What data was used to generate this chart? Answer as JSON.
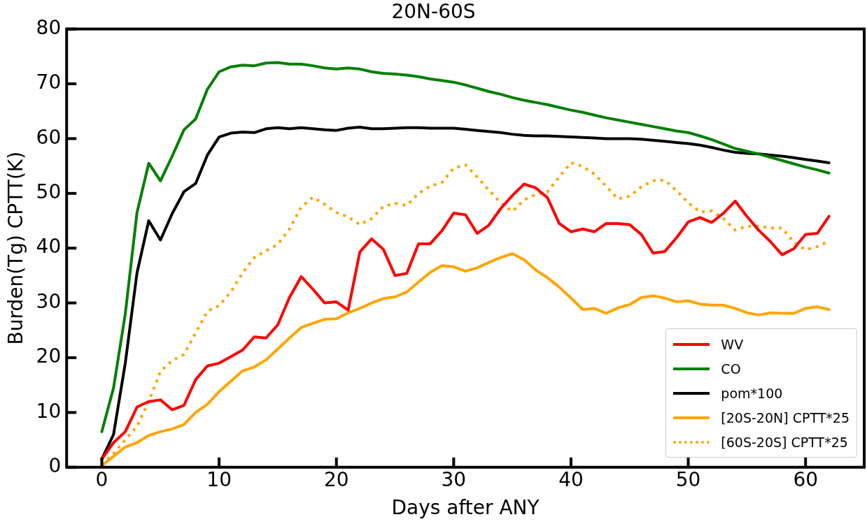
{
  "chart_data": {
    "type": "line",
    "title": "20N-60S",
    "xlabel": "Days after ANY",
    "ylabel": "Burden(Tg) CPTT(K)",
    "x": [
      0,
      1,
      2,
      3,
      4,
      5,
      6,
      7,
      8,
      9,
      10,
      11,
      12,
      13,
      14,
      15,
      16,
      17,
      18,
      19,
      20,
      21,
      22,
      23,
      24,
      25,
      26,
      27,
      28,
      29,
      30,
      31,
      32,
      33,
      34,
      35,
      36,
      37,
      38,
      39,
      40,
      41,
      42,
      43,
      44,
      45,
      46,
      47,
      48,
      49,
      50,
      51,
      52,
      53,
      54,
      55,
      56,
      57,
      58,
      59,
      60,
      61,
      62
    ],
    "xlim": [
      -3,
      65
    ],
    "ylim": [
      0,
      80
    ],
    "xticks": [
      0,
      10,
      20,
      30,
      40,
      50,
      60
    ],
    "yticks": [
      0,
      10,
      20,
      30,
      40,
      50,
      60,
      70,
      80
    ],
    "legend": "bottom right",
    "series": [
      {
        "name": "WV",
        "color": "#ff0000",
        "values": [
          1.5,
          4.5,
          6.5,
          11,
          12,
          12.3,
          10.5,
          11.3,
          16,
          18.5,
          19,
          20.2,
          21.4,
          23.8,
          23.6,
          26,
          31,
          34.8,
          32.5,
          30,
          30.2,
          28.7,
          39.3,
          41.7,
          39.8,
          35,
          35.4,
          40.8,
          40.8,
          43.2,
          46.4,
          46.1,
          42.7,
          44.2,
          47.2,
          49.6,
          51.7,
          51,
          49.2,
          44.5,
          43,
          43.5,
          43,
          44.5,
          44.5,
          44.3,
          42.5,
          39.1,
          39.4,
          41.9,
          44.8,
          45.6,
          44.7,
          46.4,
          48.6,
          45.8,
          43.3,
          41.2,
          38.8,
          39.9,
          42.5,
          42.7,
          45.8
        ]
      },
      {
        "name": "CO",
        "color": "#008000",
        "values": [
          6.5,
          14.5,
          28,
          46.5,
          55.5,
          52.3,
          56.8,
          61.6,
          63.6,
          69,
          72.2,
          73.1,
          73.4,
          73.3,
          73.8,
          73.9,
          73.6,
          73.6,
          73.3,
          72.9,
          72.7,
          72.9,
          72.7,
          72.2,
          71.9,
          71.8,
          71.6,
          71.3,
          70.9,
          70.6,
          70.3,
          69.8,
          69.2,
          68.6,
          68.1,
          67.5,
          67,
          66.6,
          66.2,
          65.7,
          65.2,
          64.8,
          64.3,
          63.8,
          63.4,
          63,
          62.6,
          62.2,
          61.8,
          61.4,
          61.1,
          60.5,
          59.8,
          59,
          58.2,
          57.7,
          57.2,
          56.6,
          56,
          55.4,
          54.8,
          54.3,
          53.7
        ]
      },
      {
        "name": "pom*100",
        "color": "#000000",
        "values": [
          1.5,
          6,
          19,
          35.5,
          45,
          41.5,
          46.3,
          50.3,
          51.8,
          57,
          60.3,
          61,
          61.2,
          61.1,
          61.8,
          62,
          61.8,
          62,
          61.8,
          61.6,
          61.5,
          61.9,
          62.1,
          61.8,
          61.8,
          61.9,
          62,
          62,
          61.9,
          61.9,
          61.9,
          61.7,
          61.5,
          61.3,
          61.1,
          60.8,
          60.6,
          60.5,
          60.5,
          60.4,
          60.3,
          60.2,
          60.1,
          60,
          60,
          60,
          59.9,
          59.7,
          59.5,
          59.3,
          59.1,
          58.8,
          58.4,
          57.9,
          57.5,
          57.3,
          57.2,
          57,
          56.8,
          56.5,
          56.2,
          55.9,
          55.6
        ]
      },
      {
        "name": "[20S-20N] CPTT*25",
        "color": "#ffa500",
        "values": [
          0.3,
          2,
          3.7,
          4.5,
          5.8,
          6.5,
          7,
          7.8,
          10,
          11.5,
          13.8,
          15.7,
          17.6,
          18.3,
          19.6,
          21.6,
          23.6,
          25.5,
          26.3,
          27,
          27.1,
          28.2,
          29,
          30,
          30.8,
          31.1,
          32,
          33.8,
          35.6,
          36.8,
          36.6,
          35.8,
          36.4,
          37.4,
          38.3,
          39,
          37.9,
          36,
          34.6,
          32.9,
          30.9,
          28.8,
          29,
          28.1,
          29.1,
          29.7,
          31,
          31.3,
          30.9,
          30.2,
          30.4,
          29.8,
          29.6,
          29.6,
          29,
          28.2,
          27.8,
          28.2,
          28.1,
          28.1,
          29,
          29.3,
          28.8
        ]
      },
      {
        "name": "[60S-20S] CPTT*25",
        "color": "#ffa500",
        "line_style": "dotted",
        "values": [
          0.5,
          2.5,
          5,
          7.5,
          12,
          17.5,
          19.5,
          20.6,
          24.5,
          28.5,
          29.5,
          32,
          35.5,
          38.3,
          39.5,
          40.7,
          43.5,
          47.5,
          49.3,
          48,
          46.5,
          45.7,
          44.3,
          45.4,
          47.6,
          48.2,
          47.8,
          50,
          51.3,
          52,
          54.6,
          55.2,
          53,
          50.6,
          48.3,
          46.7,
          48.8,
          49.8,
          50.3,
          53,
          55.6,
          54.9,
          53.5,
          51.3,
          49,
          49.5,
          51.2,
          52.3,
          52.4,
          50.5,
          48.3,
          46.6,
          46.8,
          45.4,
          43.3,
          44,
          44,
          43.7,
          43.7,
          41.1,
          39.7,
          40.3,
          41.3
        ]
      }
    ]
  }
}
